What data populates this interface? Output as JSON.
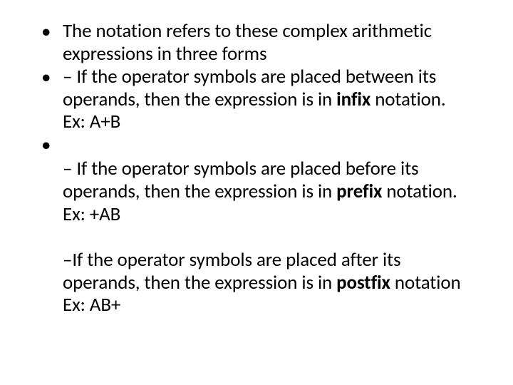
{
  "slide": {
    "background_color": "#ffffff",
    "text_color": "#000000",
    "font_family": "Calibri",
    "body_fontsize_pt": 20,
    "line_height": 1.18,
    "bullets": [
      {
        "marker": "•",
        "runs": [
          {
            "t": "The notation refers to these complex arithmetic expressions in three forms",
            "bold": false
          }
        ]
      },
      {
        "marker": "•",
        "runs": [
          {
            "t": "– If the operator symbols are placed between its operands, then the expression is in ",
            "bold": false
          },
          {
            "t": "infix",
            "bold": true
          },
          {
            "t": " notation. Ex: A+B",
            "bold": false
          }
        ]
      },
      {
        "marker": "•",
        "runs": []
      }
    ],
    "continuations": [
      {
        "runs": [
          {
            "t": "– If the operator symbols are placed before its operands, then the expression is in ",
            "bold": false
          },
          {
            "t": "prefix",
            "bold": true
          },
          {
            "t": " notation. Ex: +AB",
            "bold": false
          }
        ]
      },
      {
        "runs": [
          {
            "t": "–If the operator symbols are placed after its operands, then the expression is in ",
            "bold": false
          },
          {
            "t": "postfix",
            "bold": true
          },
          {
            "t": " notation Ex: AB+",
            "bold": false
          }
        ]
      }
    ]
  }
}
